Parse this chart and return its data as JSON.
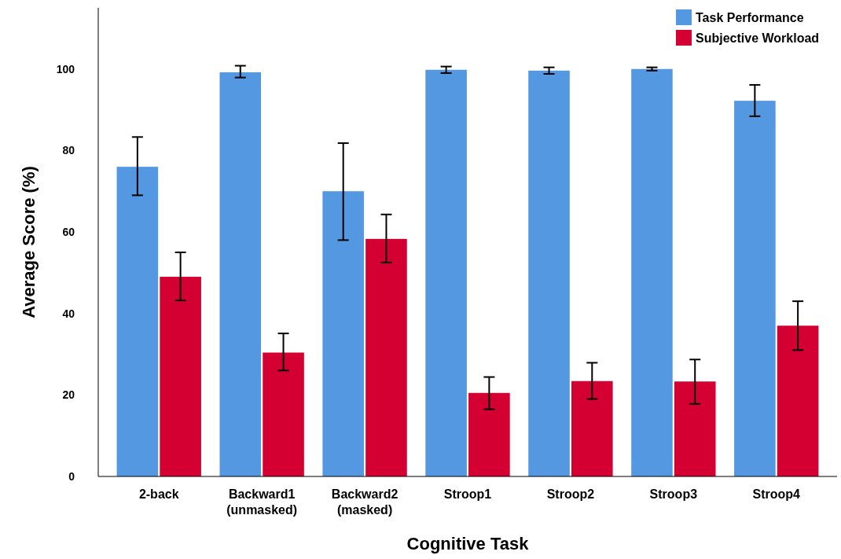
{
  "chart_data": {
    "type": "bar",
    "xlabel": "Cognitive Task",
    "ylabel": "Average Score (%)",
    "categories": [
      "2-back",
      "Backward1\n(unmasked)",
      "Backward2\n(masked)",
      "Stroop1",
      "Stroop2",
      "Stroop3",
      "Stroop4"
    ],
    "series": [
      {
        "name": "Task Performance",
        "color": "#5598e2",
        "values": [
          76,
          99.2,
          70,
          99.8,
          99.6,
          100,
          92.2
        ],
        "errors": [
          [
            69,
            83.3
          ],
          [
            97.9,
            100.8
          ],
          [
            58,
            81.8
          ],
          [
            99,
            100.6
          ],
          [
            98.8,
            100.4
          ],
          [
            99.6,
            100.4
          ],
          [
            88.4,
            96.1
          ]
        ]
      },
      {
        "name": "Subjective Workload",
        "color": "#d50032",
        "values": [
          49,
          30.4,
          58.3,
          20.5,
          23.4,
          23.3,
          37
        ],
        "errors": [
          [
            43.2,
            55
          ],
          [
            26,
            35.1
          ],
          [
            52.5,
            64.3
          ],
          [
            16.5,
            24.4
          ],
          [
            19,
            27.9
          ],
          [
            17.8,
            28.7
          ],
          [
            31,
            43
          ]
        ]
      }
    ],
    "ylim": [
      0,
      115
    ],
    "yticks": [
      0,
      20,
      40,
      60,
      80,
      100
    ],
    "grid": false,
    "legend": "top right"
  }
}
